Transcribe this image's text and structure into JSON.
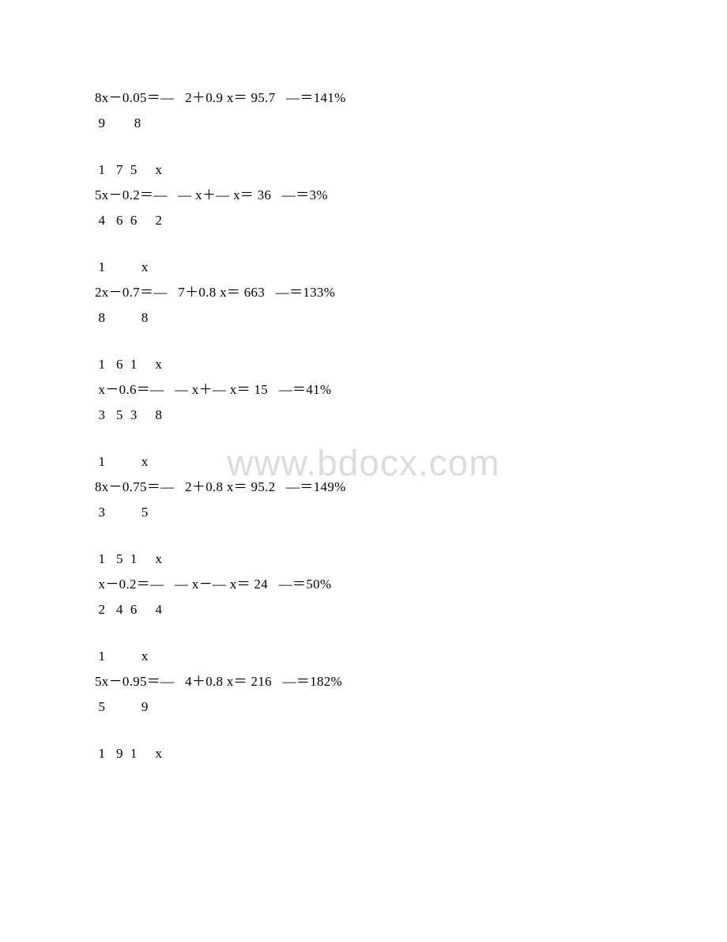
{
  "watermark": "www.bdocx.com",
  "groups": [
    {
      "lines": [
        "8x－0.05＝—   2＋0.9 x＝ 95.7   —＝141%",
        " 9        8"
      ]
    },
    {
      "lines": [
        " 1   7  5     x",
        "5x－0.2＝—   — x＋— x＝ 36   —＝3%",
        " 4   6  6     2"
      ]
    },
    {
      "lines": [
        " 1          x",
        "2x－0.7＝—   7＋0.8 x＝ 663   —＝133%",
        " 8          8"
      ]
    },
    {
      "lines": [
        " 1   6  1     x",
        " x－0.6＝—   — x＋— x＝ 15   —＝41%",
        " 3   5  3     8"
      ]
    },
    {
      "lines": [
        " 1          x",
        "8x－0.75＝—   2＋0.8 x＝ 95.2   —＝149%",
        " 3          5"
      ]
    },
    {
      "lines": [
        " 1   5  1     x",
        " x－0.2＝—   — x－— x＝ 24   —＝50%",
        " 2   4  6     4"
      ]
    },
    {
      "lines": [
        " 1          x",
        "5x－0.95＝—   4＋0.8 x＝ 216   —＝182%",
        " 5          9"
      ]
    },
    {
      "lines": [
        " 1   9  1     x"
      ]
    }
  ]
}
